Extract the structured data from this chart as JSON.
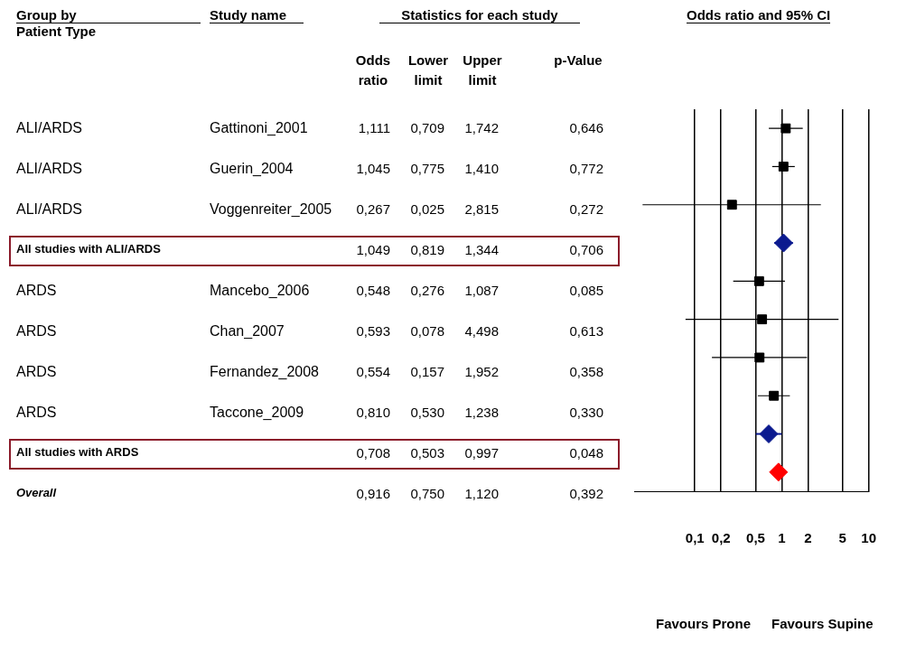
{
  "chart_data": [
    {
      "type": "other",
      "annotations": [
        "Group by",
        "Patient Type",
        "Study name",
        "Statistics for each study"
      ],
      "categories": [
        "Odds ratio",
        "Lower limit",
        "Upper limit",
        "p-Value"
      ],
      "y_categories": [
        "ALI/ARDS",
        "ALI/ARDS",
        "ALI/ARDS",
        "All studies with ALI/ARDS",
        "ARDS",
        "ARDS",
        "ARDS",
        "ARDS",
        "All studies with  ARDS",
        "Overall"
      ],
      "y2_categories": [
        "Gattinoni_2001",
        "Guerin_2004",
        "Voggenreiter_2005",
        null,
        "Mancebo_2006",
        "Chan_2007",
        "Fernandez_2008",
        "Taccone_2009",
        null,
        null
      ],
      "cell_labels": [
        [
          "1,111",
          "0,709",
          "1,742",
          "0,646"
        ],
        [
          "1,045",
          "0,775",
          "1,410",
          "0,772"
        ],
        [
          "0,267",
          "0,025",
          "2,815",
          "0,272"
        ],
        [
          "1,049",
          "0,819",
          "1,344",
          "0,706"
        ],
        [
          "0,548",
          "0,276",
          "1,087",
          "0,085"
        ],
        [
          "0,593",
          "0,078",
          "4,498",
          "0,613"
        ],
        [
          "0,554",
          "0,157",
          "1,952",
          "0,358"
        ],
        [
          "0,810",
          "0,530",
          "1,238",
          "0,330"
        ],
        [
          "0,708",
          "0,503",
          "0,997",
          "0,048"
        ],
        [
          "0,916",
          "0,750",
          "1,120",
          "0,392"
        ]
      ]
    },
    {
      "type": "scatter",
      "orientation": "horizontal",
      "title": "Odds ratio and 95% CI",
      "log": "x",
      "grid": "x",
      "tick_labels": "x",
      "categories": [
        null,
        null,
        null,
        null,
        null,
        null,
        null,
        null,
        null,
        null
      ],
      "xlim": [
        0.02,
        10
      ],
      "xticks": [
        {
          "value": 0.1,
          "label": "0,1"
        },
        {
          "value": 0.2,
          "label": "0,2"
        },
        {
          "value": 0.5,
          "label": "0,5"
        },
        1,
        2,
        5,
        10
      ],
      "series": [
        {
          "color": "#000000",
          "marker": "square",
          "values": [
            1.111,
            1.045,
            0.267,
            null,
            0.548,
            0.593,
            0.554,
            0.81,
            null,
            null
          ],
          "errors": [
            [
              0.709,
              1.742
            ],
            [
              0.775,
              1.41
            ],
            [
              0.025,
              2.815
            ],
            null,
            [
              0.276,
              1.087
            ],
            [
              0.078,
              4.498
            ],
            [
              0.157,
              1.952
            ],
            [
              0.53,
              1.238
            ],
            null,
            null
          ]
        },
        {
          "colors": [
            null,
            null,
            null,
            "#0b1a8f",
            null,
            null,
            null,
            null,
            "#0b1a8f",
            "#ff0000"
          ],
          "marker": "diamond",
          "values": [
            null,
            null,
            null,
            1.049,
            null,
            null,
            null,
            null,
            0.708,
            0.916
          ],
          "errors": [
            null,
            null,
            null,
            [
              0.819,
              1.344
            ],
            null,
            null,
            null,
            null,
            [
              0.503,
              0.997
            ],
            [
              0.75,
              1.12
            ]
          ]
        }
      ],
      "annotations": [
        "Favours Prone",
        "Favours Supine"
      ]
    }
  ]
}
